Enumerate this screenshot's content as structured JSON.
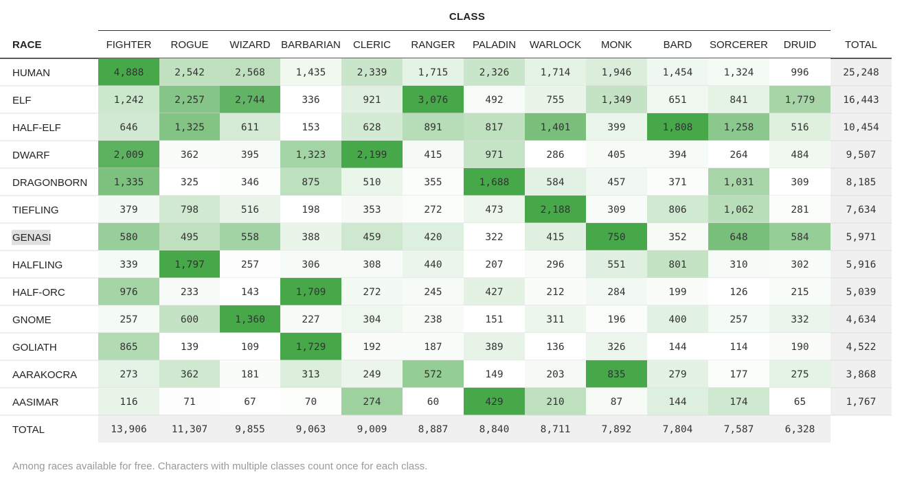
{
  "chart_data": {
    "type": "heatmap",
    "title": "CLASS",
    "row_header": "RACE",
    "total_label": "TOTAL",
    "columns": [
      "FIGHTER",
      "ROGUE",
      "WIZARD",
      "BARBARIAN",
      "CLERIC",
      "RANGER",
      "PALADIN",
      "WARLOCK",
      "MONK",
      "BARD",
      "SORCERER",
      "DRUID"
    ],
    "rows": [
      {
        "race": "HUMAN",
        "values": [
          4888,
          2542,
          2568,
          1435,
          2339,
          1715,
          2326,
          1714,
          1946,
          1454,
          1324,
          996
        ],
        "total": "25,248"
      },
      {
        "race": "ELF",
        "values": [
          1242,
          2257,
          2744,
          336,
          921,
          3076,
          492,
          755,
          1349,
          651,
          841,
          1779
        ],
        "total": "16,443"
      },
      {
        "race": "HALF-ELF",
        "values": [
          646,
          1325,
          611,
          153,
          628,
          891,
          817,
          1401,
          399,
          1808,
          1258,
          516
        ],
        "total": "10,454"
      },
      {
        "race": "DWARF",
        "values": [
          2009,
          362,
          395,
          1323,
          2199,
          415,
          971,
          286,
          405,
          394,
          264,
          484
        ],
        "total": "9,507"
      },
      {
        "race": "DRAGONBORN",
        "values": [
          1335,
          325,
          346,
          875,
          510,
          355,
          1688,
          584,
          457,
          371,
          1031,
          309
        ],
        "total": "8,185"
      },
      {
        "race": "TIEFLING",
        "values": [
          379,
          798,
          516,
          198,
          353,
          272,
          473,
          2188,
          309,
          806,
          1062,
          281
        ],
        "total": "7,634"
      },
      {
        "race": "GENASI",
        "values": [
          580,
          495,
          558,
          388,
          459,
          420,
          322,
          415,
          750,
          352,
          648,
          584
        ],
        "total": "5,971",
        "highlighted": true
      },
      {
        "race": "HALFLING",
        "values": [
          339,
          1797,
          257,
          306,
          308,
          440,
          207,
          296,
          551,
          801,
          310,
          302
        ],
        "total": "5,916"
      },
      {
        "race": "HALF-ORC",
        "values": [
          976,
          233,
          143,
          1709,
          272,
          245,
          427,
          212,
          284,
          199,
          126,
          215
        ],
        "total": "5,039"
      },
      {
        "race": "GNOME",
        "values": [
          257,
          600,
          1360,
          227,
          304,
          238,
          151,
          311,
          196,
          400,
          257,
          332
        ],
        "total": "4,634"
      },
      {
        "race": "GOLIATH",
        "values": [
          865,
          139,
          109,
          1729,
          192,
          187,
          389,
          136,
          326,
          144,
          114,
          190
        ],
        "total": "4,522"
      },
      {
        "race": "AARAKOCRA",
        "values": [
          273,
          362,
          181,
          313,
          249,
          572,
          149,
          203,
          835,
          279,
          177,
          275
        ],
        "total": "3,868"
      },
      {
        "race": "AASIMAR",
        "values": [
          116,
          71,
          67,
          70,
          274,
          60,
          429,
          210,
          87,
          144,
          174,
          65
        ],
        "total": "1,767"
      }
    ],
    "column_totals": [
      "13,906",
      "11,307",
      "9,855",
      "9,063",
      "9,009",
      "8,887",
      "8,840",
      "8,711",
      "7,892",
      "7,804",
      "7,587",
      "6,328"
    ],
    "color_scale": {
      "low": "#ffffff",
      "high": "#47a84a",
      "per_row": true
    },
    "total_bg": "#f0f0f0",
    "highlight_bg": "#e0e0e0"
  },
  "footnote": "Among races available for free. Characters with multiple classes count once for each class."
}
